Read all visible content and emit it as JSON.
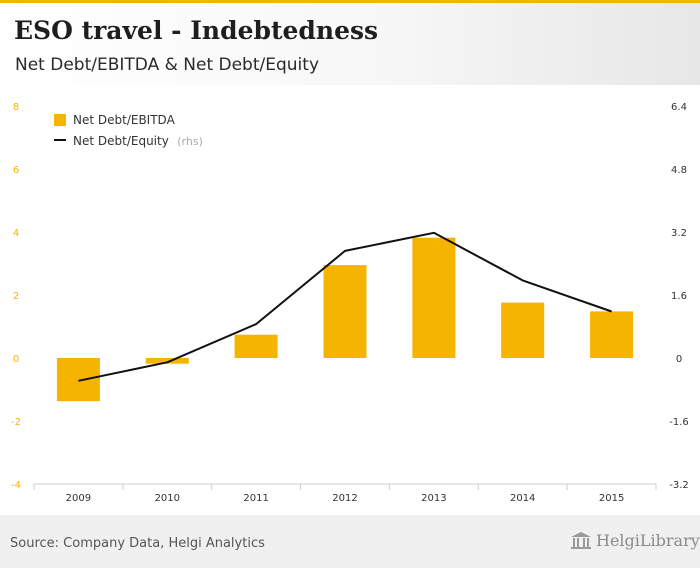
{
  "header": {
    "title": "ESO travel - Indebtedness",
    "subtitle": "Net Debt/EBITDA & Net Debt/Equity"
  },
  "footer": {
    "source": "Source: Company Data, Helgi Analytics",
    "brand": "HelgiLibrary"
  },
  "colors": {
    "bar": "#f5b400",
    "line": "#111111",
    "left_ticks": "#f5b400"
  },
  "chart_data": {
    "type": "bar",
    "categories": [
      "2009",
      "2010",
      "2011",
      "2012",
      "2013",
      "2014",
      "2015"
    ],
    "series": [
      {
        "name": "Net Debt/EBITDA",
        "type": "bar",
        "axis": "left",
        "values": [
          -1.37,
          -0.18,
          0.74,
          2.95,
          3.82,
          1.76,
          1.48
        ]
      },
      {
        "name": "Net Debt/Equity",
        "note": "(rhs)",
        "type": "line",
        "axis": "right",
        "values": [
          -0.58,
          -0.11,
          0.86,
          2.72,
          3.18,
          1.97,
          1.18
        ]
      }
    ],
    "left_axis": {
      "ylim": [
        -4,
        8
      ],
      "ticks": [
        "-4",
        "-2",
        "0",
        "2",
        "4",
        "6",
        "8"
      ]
    },
    "right_axis": {
      "ylim": [
        -3.2,
        6.4
      ],
      "ticks": [
        "-3.2",
        "-1.6",
        "0",
        "1.6",
        "3.2",
        "4.8",
        "6.4"
      ]
    },
    "legend": {
      "position": "top-left"
    },
    "grid": false
  }
}
